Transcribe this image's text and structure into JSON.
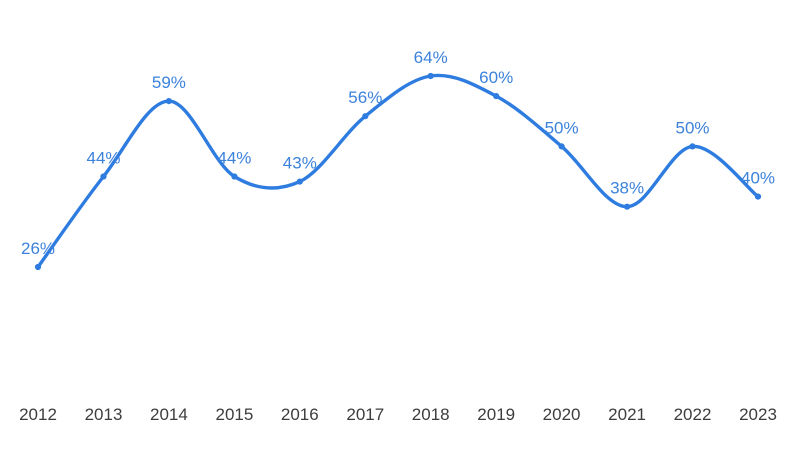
{
  "chart_data": {
    "type": "line",
    "title": "",
    "xlabel": "",
    "ylabel": "",
    "categories": [
      "2012",
      "2013",
      "2014",
      "2015",
      "2016",
      "2017",
      "2018",
      "2019",
      "2020",
      "2021",
      "2022",
      "2023"
    ],
    "values": [
      26,
      44,
      59,
      44,
      43,
      56,
      64,
      60,
      50,
      38,
      50,
      40
    ],
    "point_labels": [
      "26%",
      "44%",
      "59%",
      "44%",
      "43%",
      "56%",
      "64%",
      "60%",
      "50%",
      "38%",
      "50%",
      "40%"
    ],
    "series_name": "",
    "legend": null,
    "grid": false,
    "y_axis_visible": false,
    "x_axis_visible": true,
    "line_style": "smooth",
    "markers": true
  },
  "colors": {
    "line": "#2E7CE0",
    "point": "#2E7CE0",
    "value_label": "#3C82DB",
    "axis_label": "#3D3D3D",
    "background": "#FFFFFF"
  }
}
